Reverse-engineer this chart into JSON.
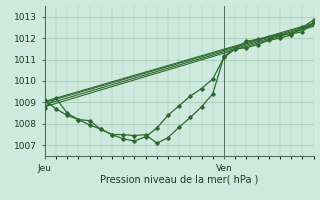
{
  "bg_color": "#ceeade",
  "line_color": "#2d6a2d",
  "grid_color": "#9fc8b0",
  "ylabel_ticks": [
    1007,
    1008,
    1009,
    1010,
    1011,
    1012,
    1013
  ],
  "xlabel": "Pression niveau de la mer( hPa )",
  "x_jeu_label": "Jeu",
  "x_ven_label": "Ven",
  "ylim": [
    1006.5,
    1013.5
  ],
  "xlim": [
    0,
    48
  ],
  "x_ven": 32,
  "series": [
    [
      0,
      1008.75,
      2,
      1009.2,
      4,
      1008.5,
      6,
      1008.2,
      8,
      1008.15,
      10,
      1007.75,
      12,
      1007.5,
      14,
      1007.5,
      16,
      1007.45,
      18,
      1007.5,
      20,
      1007.1,
      22,
      1007.35,
      24,
      1007.85,
      26,
      1008.3,
      28,
      1008.8,
      30,
      1009.4,
      32,
      1011.15,
      34,
      1011.5,
      36,
      1011.85,
      38,
      1011.95,
      40,
      1012.05,
      42,
      1012.15,
      44,
      1012.2,
      46,
      1012.3,
      48,
      1012.75
    ],
    [
      0,
      1008.8,
      48,
      1012.55
    ],
    [
      0,
      1008.9,
      48,
      1012.6
    ],
    [
      0,
      1009.0,
      48,
      1012.65
    ],
    [
      0,
      1009.05,
      48,
      1012.7
    ],
    [
      0,
      1009.1,
      2,
      1008.7,
      4,
      1008.4,
      6,
      1008.2,
      8,
      1007.95,
      10,
      1007.75,
      12,
      1007.5,
      14,
      1007.3,
      16,
      1007.2,
      18,
      1007.4,
      20,
      1007.8,
      22,
      1008.4,
      24,
      1008.85,
      26,
      1009.3,
      28,
      1009.65,
      30,
      1010.1,
      32,
      1011.1,
      34,
      1011.5,
      36,
      1011.55,
      38,
      1011.7,
      40,
      1011.9,
      42,
      1012.0,
      44,
      1012.15,
      46,
      1012.5,
      48,
      1012.85
    ]
  ],
  "vline_x": 32,
  "vline_color": "#4a7060"
}
